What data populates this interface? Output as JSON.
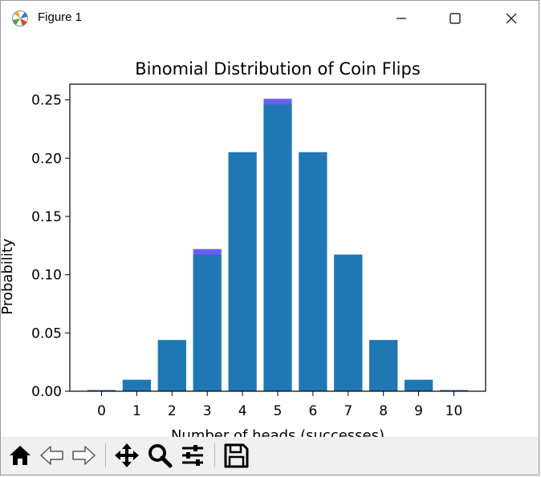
{
  "window": {
    "title": "Figure 1",
    "icons": {
      "app": "matplotlib-icon",
      "minimize": "minimize-icon",
      "maximize": "maximize-icon",
      "close": "close-icon"
    }
  },
  "toolbar": {
    "buttons": [
      {
        "icon": "home-icon"
      },
      {
        "icon": "back-arrow-icon"
      },
      {
        "icon": "forward-arrow-icon"
      },
      {
        "icon": "pan-move-icon"
      },
      {
        "icon": "zoom-magnifier-icon"
      },
      {
        "icon": "configure-subplots-icon"
      },
      {
        "icon": "save-disk-icon"
      }
    ]
  },
  "chart_data": {
    "type": "bar",
    "title": "Binomial Distribution of Coin Flips",
    "xlabel": "Number of heads (successes)",
    "ylabel": "Probability",
    "categories": [
      "0",
      "1",
      "2",
      "3",
      "4",
      "5",
      "6",
      "7",
      "8",
      "9",
      "10"
    ],
    "series": [
      {
        "values": [
          0.001,
          0.0098,
          0.0439,
          0.1172,
          0.2051,
          0.2461,
          0.2051,
          0.1172,
          0.0439,
          0.0098,
          0.001
        ],
        "color": "#1f77b4"
      },
      {
        "values": [
          0.001,
          0.0098,
          0.0439,
          0.122,
          0.2051,
          0.251,
          0.2051,
          0.1172,
          0.0439,
          0.0098,
          0.001
        ],
        "color": "#6a5ff0"
      }
    ],
    "yticks": [
      "0.00",
      "0.05",
      "0.10",
      "0.15",
      "0.20",
      "0.25"
    ],
    "ytick_values": [
      0,
      0.05,
      0.1,
      0.15,
      0.2,
      0.25
    ],
    "ylim": [
      0,
      0.2635
    ],
    "xlim": [
      -0.9,
      10.9
    ],
    "grid": false
  }
}
